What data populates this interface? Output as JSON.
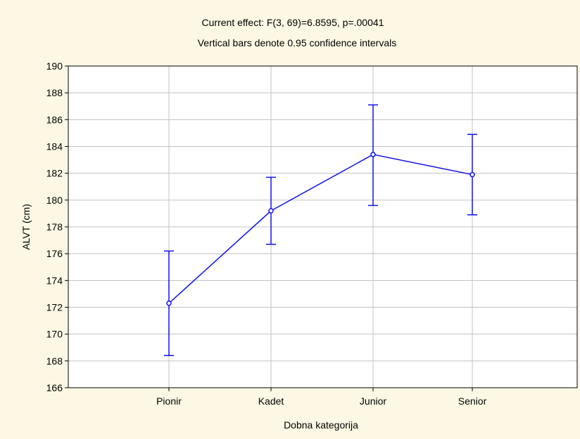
{
  "chart_data": {
    "type": "line",
    "title": "Current effect: F(3, 69)=6.8595, p=.00041",
    "subtitle": "Vertical bars denote 0.95 confidence intervals",
    "xlabel": "Dobna kategorija",
    "ylabel": "ALVT (cm)",
    "categories": [
      "Pionir",
      "Kadet",
      "Junior",
      "Senior"
    ],
    "series": [
      {
        "values": [
          172.3,
          179.2,
          183.4,
          181.9
        ],
        "ci_lower": [
          168.4,
          176.7,
          179.6,
          178.9
        ],
        "ci_upper": [
          176.2,
          181.7,
          187.1,
          184.9
        ]
      }
    ],
    "ylim": [
      166,
      190
    ],
    "yticks": [
      "166",
      "168",
      "170",
      "172",
      "174",
      "176",
      "178",
      "180",
      "182",
      "184",
      "186",
      "188",
      "190"
    ],
    "grid": true,
    "colors": {
      "series": "#1010ee",
      "grid": "#c0c0c0",
      "plot_bg": "#ffffff",
      "frame_bg": "#fdf8e4"
    }
  }
}
